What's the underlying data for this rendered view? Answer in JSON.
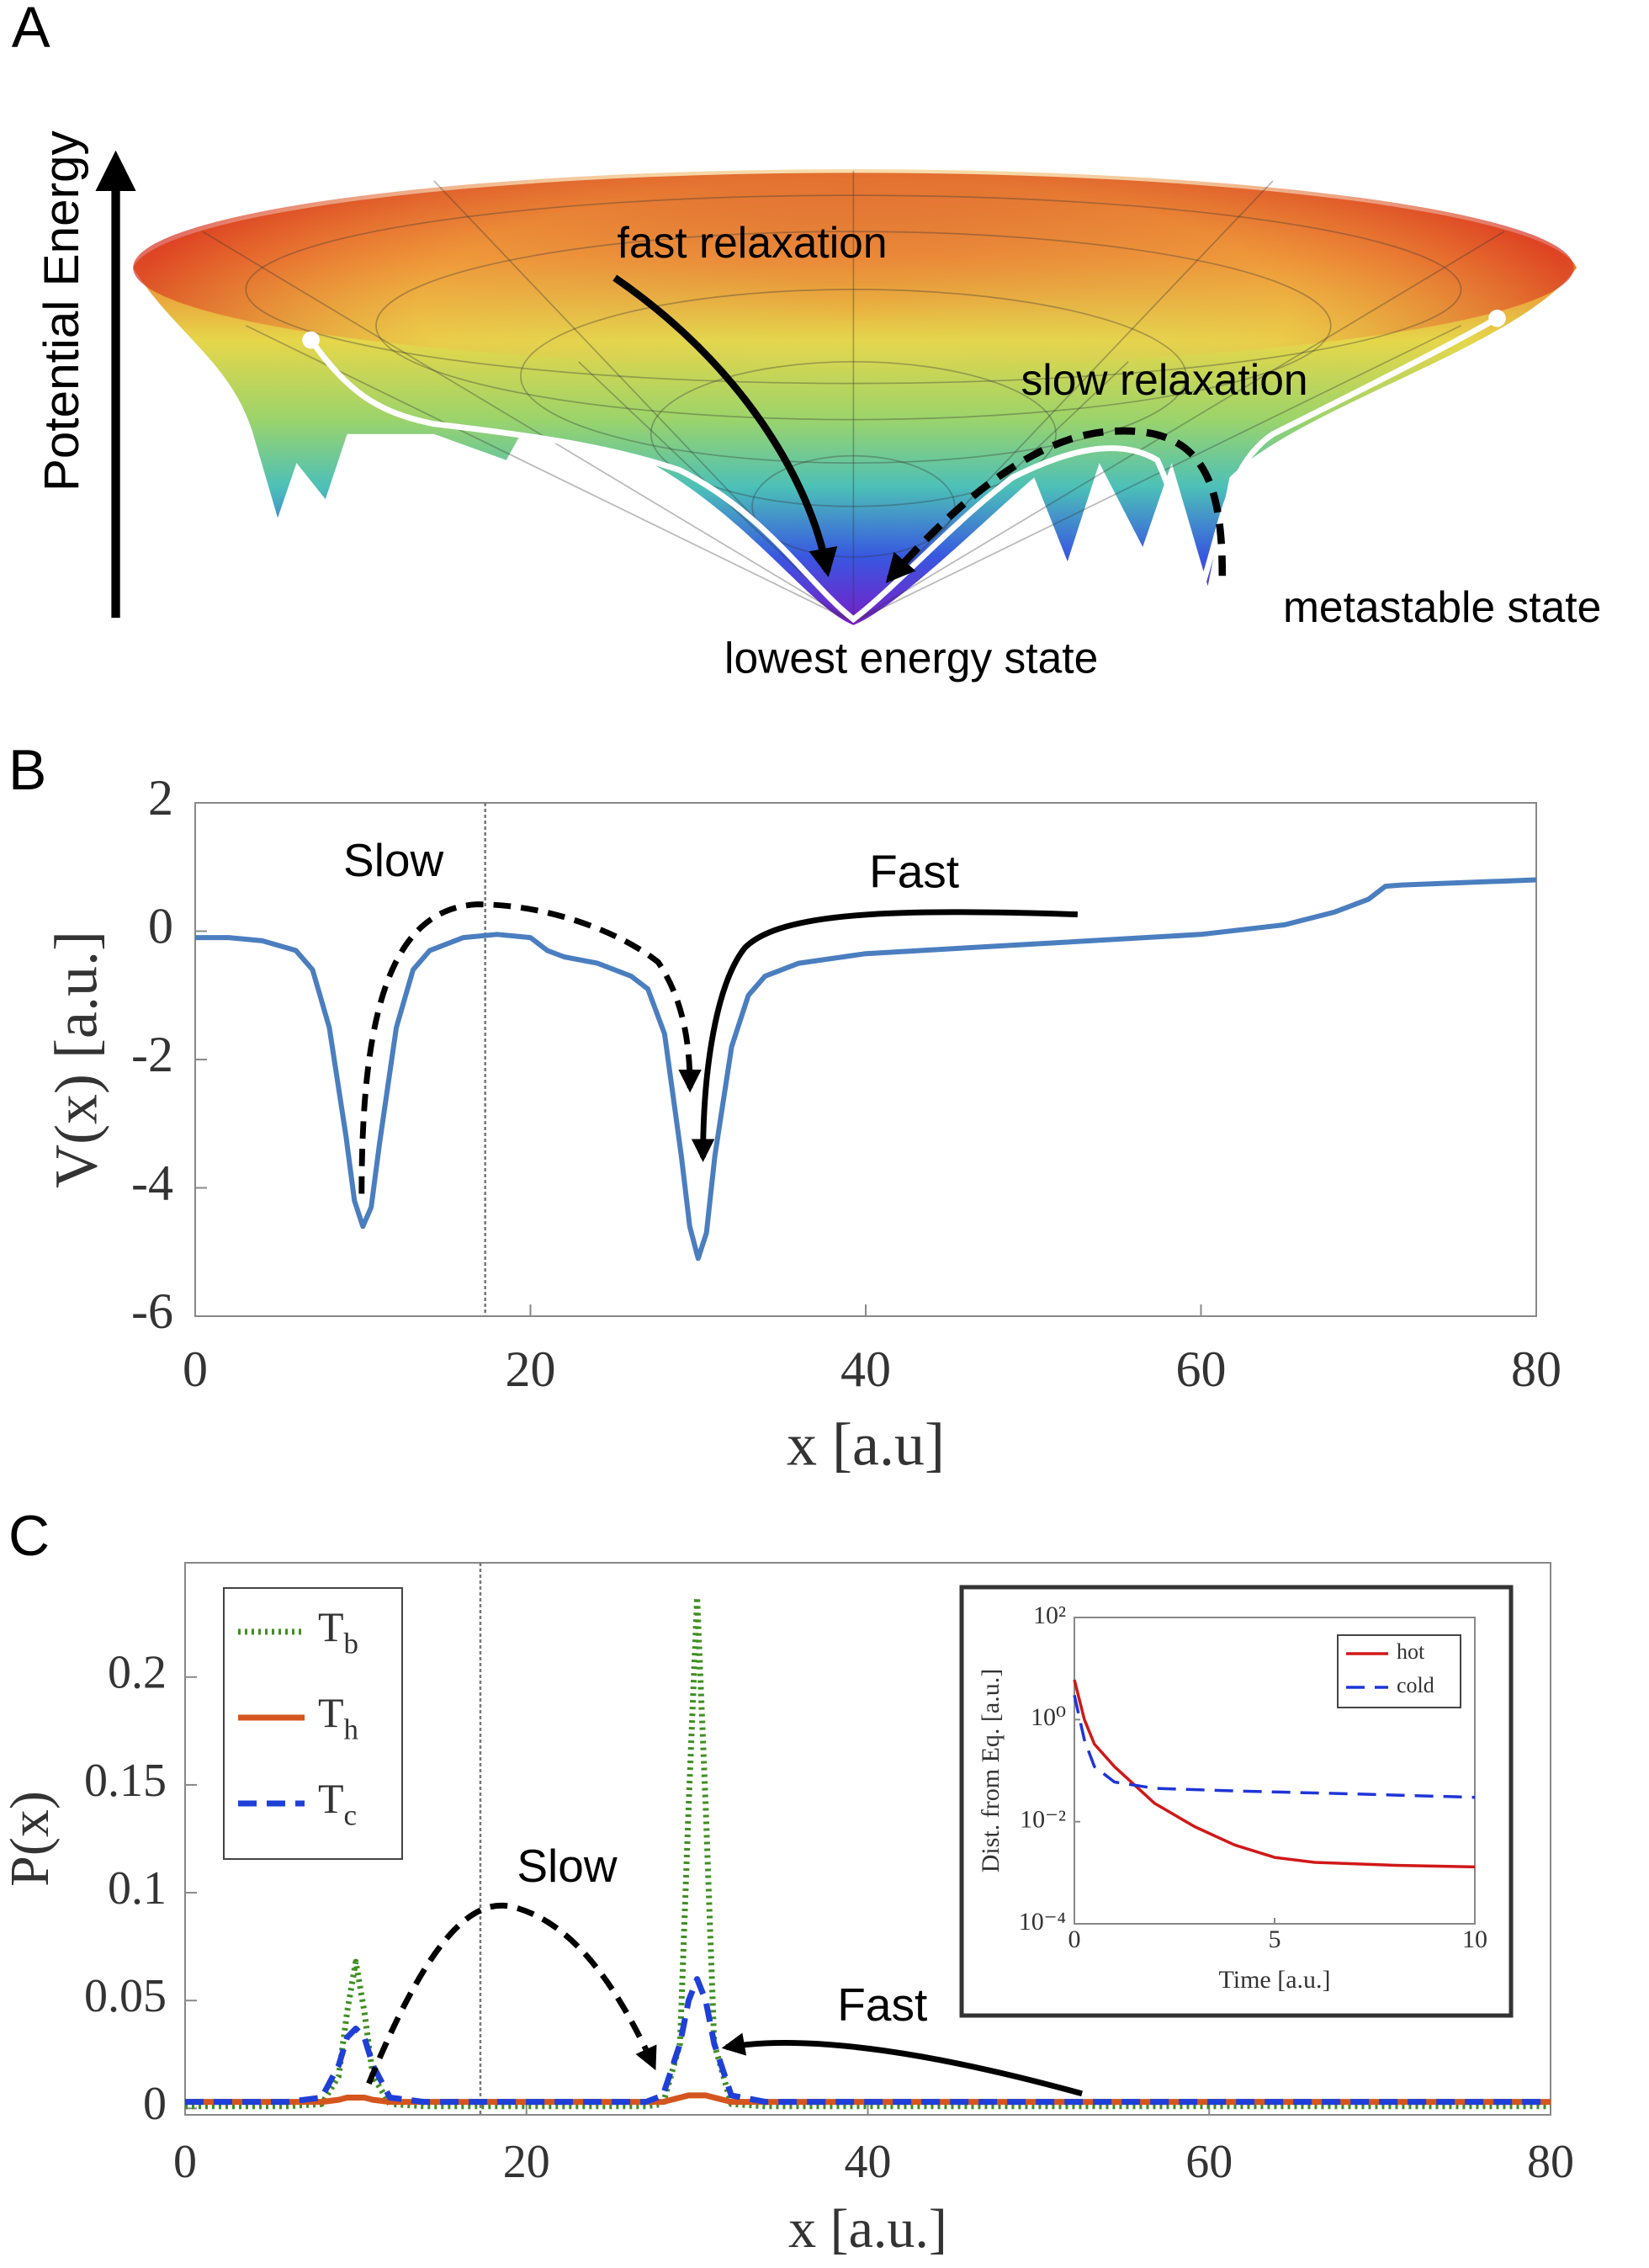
{
  "diagram": {
    "label": "A",
    "axis_label": "Potential Energy",
    "annotations": [
      "fast relaxation",
      "slow relaxation",
      "metastable state",
      "lowest energy state"
    ]
  },
  "chart_data": [
    {
      "type": "line",
      "panel": "B",
      "xlabel": "x [a.u]",
      "ylabel": "V(x) [a.u.]",
      "annotations": [
        "Slow",
        "Fast"
      ],
      "xlim": [
        0,
        80
      ],
      "ylim": [
        -6,
        2
      ],
      "xticks": [
        0,
        20,
        40,
        60,
        80
      ],
      "yticks": [
        -6,
        -4,
        -2,
        0,
        2
      ],
      "vline": 17.3,
      "color": "#4a7ebf",
      "x": [
        0,
        2,
        4,
        6,
        7,
        8,
        9,
        9.5,
        10,
        10.5,
        11,
        12,
        13,
        14,
        16,
        18,
        20,
        21,
        22,
        24,
        26,
        27,
        28,
        29,
        29.5,
        30,
        30.5,
        31,
        32,
        33,
        34,
        36,
        40,
        50,
        60,
        65,
        68,
        70,
        71,
        72,
        75,
        80
      ],
      "values": [
        -0.1,
        -0.1,
        -0.15,
        -0.3,
        -0.6,
        -1.5,
        -3.2,
        -4.2,
        -4.6,
        -4.3,
        -3.3,
        -1.5,
        -0.6,
        -0.3,
        -0.1,
        -0.05,
        -0.1,
        -0.3,
        -0.4,
        -0.5,
        -0.7,
        -0.9,
        -1.6,
        -3.5,
        -4.6,
        -5.1,
        -4.7,
        -3.5,
        -1.8,
        -1.0,
        -0.7,
        -0.5,
        -0.35,
        -0.2,
        -0.05,
        0.1,
        0.3,
        0.5,
        0.7,
        0.72,
        0.75,
        0.8
      ]
    },
    {
      "type": "line",
      "panel": "C",
      "xlabel": "x [a.u.]",
      "ylabel": "P(x)",
      "annotations": [
        "Slow",
        "Fast"
      ],
      "xlim": [
        0,
        80
      ],
      "ylim": [
        -0.003,
        0.253
      ],
      "xticks": [
        0,
        20,
        40,
        60,
        80
      ],
      "yticks": [
        0,
        0.05,
        0.1,
        0.15,
        0.2
      ],
      "vline": 17.3,
      "legend": "upper left",
      "x": [
        0,
        2,
        4,
        6,
        8,
        9,
        9.5,
        10,
        10.5,
        11,
        12,
        14,
        16,
        18,
        20,
        22,
        24,
        26,
        27,
        28,
        29,
        29.5,
        30,
        30.5,
        31,
        32,
        34,
        36,
        40,
        50,
        60,
        70,
        80
      ],
      "series": [
        {
          "name": "Tb",
          "color": "#3f8f22",
          "style": "dotted",
          "values": [
            0.001,
            0.001,
            0.001,
            0.001,
            0.002,
            0.015,
            0.045,
            0.068,
            0.045,
            0.015,
            0.002,
            0.001,
            0.001,
            0.001,
            0.001,
            0.001,
            0.001,
            0.001,
            0.001,
            0.002,
            0.03,
            0.14,
            0.237,
            0.14,
            0.03,
            0.002,
            0.001,
            0.001,
            0.001,
            0.001,
            0.001,
            0.001,
            0.001
          ]
        },
        {
          "name": "Th",
          "color": "#d4561e",
          "style": "solid",
          "values": [
            0.003,
            0.003,
            0.003,
            0.003,
            0.003,
            0.004,
            0.005,
            0.005,
            0.005,
            0.004,
            0.003,
            0.003,
            0.003,
            0.003,
            0.003,
            0.003,
            0.003,
            0.003,
            0.003,
            0.003,
            0.005,
            0.006,
            0.006,
            0.006,
            0.005,
            0.003,
            0.003,
            0.003,
            0.003,
            0.003,
            0.003,
            0.003,
            0.003
          ]
        },
        {
          "name": "Tc",
          "color": "#1f3fd8",
          "style": "dashed",
          "values": [
            0.003,
            0.003,
            0.003,
            0.003,
            0.005,
            0.02,
            0.033,
            0.037,
            0.033,
            0.02,
            0.005,
            0.003,
            0.003,
            0.003,
            0.003,
            0.003,
            0.003,
            0.003,
            0.003,
            0.006,
            0.03,
            0.05,
            0.06,
            0.05,
            0.03,
            0.006,
            0.003,
            0.003,
            0.003,
            0.003,
            0.003,
            0.003,
            0.003
          ]
        }
      ]
    },
    {
      "type": "line",
      "xlabel": "Time [a.u.]",
      "ylabel": "Dist. from Eq. [a.u.]",
      "xlim": [
        0,
        10
      ],
      "ylim": [
        0.0001,
        100
      ],
      "log_y": true,
      "legend": "upper right",
      "xticks": [
        0,
        5,
        10
      ],
      "yticks": [
        {
          "value": 0.0001,
          "label": "10⁻⁴"
        },
        {
          "value": 0.01,
          "label": "10⁻²"
        },
        {
          "value": 1,
          "label": "10⁰"
        },
        {
          "value": 100,
          "label": "10²"
        }
      ],
      "series": [
        {
          "name": "hot",
          "color": "#d01818",
          "style": "solid",
          "x": [
            0,
            0.25,
            0.5,
            1,
            2,
            3,
            4,
            5,
            6,
            8,
            10
          ],
          "values": [
            6,
            1,
            0.33,
            0.12,
            0.023,
            0.008,
            0.0035,
            0.002,
            0.0016,
            0.0014,
            0.0013
          ]
        },
        {
          "name": "cold",
          "color": "#1f35d8",
          "style": "dashed",
          "x": [
            0,
            0.25,
            0.5,
            1,
            2,
            4,
            7,
            10
          ],
          "values": [
            3,
            0.4,
            0.12,
            0.06,
            0.045,
            0.04,
            0.035,
            0.03
          ]
        }
      ]
    }
  ]
}
